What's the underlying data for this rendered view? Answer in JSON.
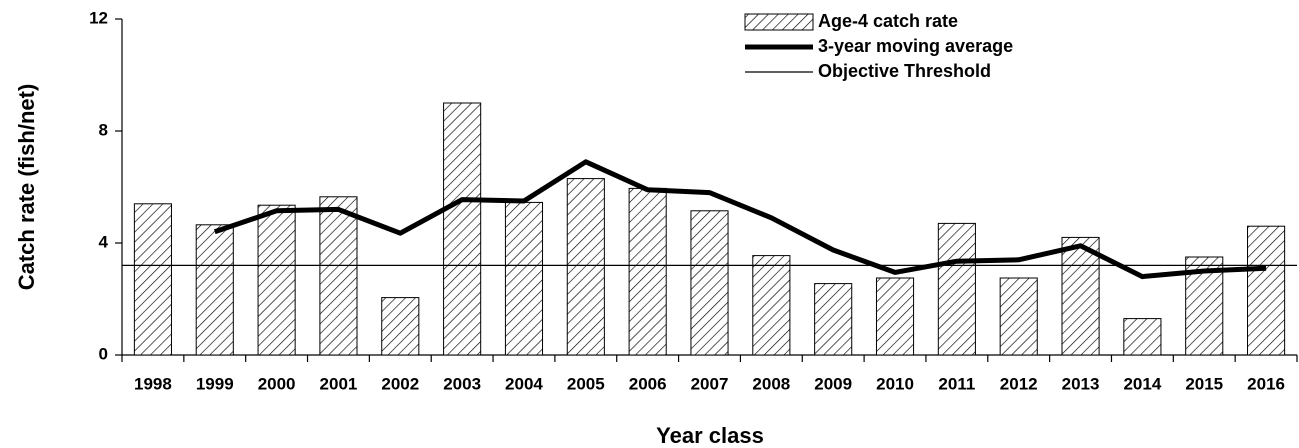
{
  "chart_data": {
    "type": "bar",
    "x_label": "Year class",
    "y_label": "Catch rate (fish/net)",
    "categories": [
      "1998",
      "1999",
      "2000",
      "2001",
      "2002",
      "2003",
      "2004",
      "2005",
      "2006",
      "2007",
      "2008",
      "2009",
      "2010",
      "2011",
      "2012",
      "2013",
      "2014",
      "2015",
      "2016"
    ],
    "series": [
      {
        "name": "Age-4 catch rate",
        "type": "bar",
        "color": "#000000",
        "values": [
          5.4,
          4.65,
          5.35,
          5.65,
          2.05,
          9.0,
          5.45,
          6.3,
          5.95,
          5.15,
          3.55,
          2.55,
          2.75,
          4.7,
          2.75,
          4.2,
          1.3,
          3.5,
          4.6
        ]
      },
      {
        "name": "3-year moving average",
        "type": "line",
        "color": "#000000",
        "values": [
          null,
          4.4,
          5.15,
          5.2,
          4.35,
          5.55,
          5.5,
          6.9,
          5.9,
          5.8,
          4.9,
          3.75,
          2.95,
          3.35,
          3.4,
          3.9,
          2.8,
          3.0,
          3.1
        ]
      }
    ],
    "threshold": {
      "name": "Objective Threshold",
      "value": 3.2,
      "color": "#000000"
    },
    "ylim": [
      0,
      12
    ],
    "yticks": [
      0,
      4,
      8,
      12
    ]
  }
}
